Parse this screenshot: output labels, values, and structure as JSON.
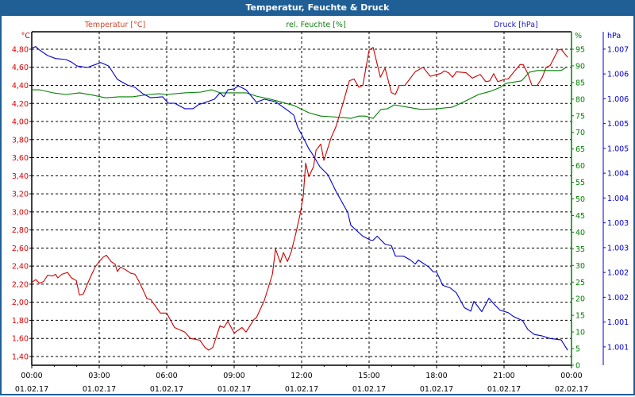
{
  "title": "Temperatur, Feuchte & Druck",
  "chart_data": {
    "type": "line",
    "title": "Temperatur, Feuchte & Druck",
    "legend": [
      {
        "name": "Temperatur [°C]",
        "color": "#cc0000"
      },
      {
        "name": "rel. Feuchte [%]",
        "color": "#008000"
      },
      {
        "name": "Druck [hPa]",
        "color": "#0000cc"
      }
    ],
    "x_axis": {
      "unit": "hours since 01.02.17 00:00",
      "range": [
        0,
        24
      ],
      "ticks": [
        {
          "h": 0,
          "time": "00:00",
          "date": "01.02.17"
        },
        {
          "h": 3,
          "time": "03:00",
          "date": "01.02.17"
        },
        {
          "h": 6,
          "time": "06:00",
          "date": "01.02.17"
        },
        {
          "h": 9,
          "time": "09:00",
          "date": "01.02.17"
        },
        {
          "h": 12,
          "time": "12:00",
          "date": "01.02.17"
        },
        {
          "h": 15,
          "time": "15:00",
          "date": "01.02.17"
        },
        {
          "h": 18,
          "time": "18:00",
          "date": "01.02.17"
        },
        {
          "h": 21,
          "time": "21:00",
          "date": "01.02.17"
        },
        {
          "h": 24,
          "time": "00:00",
          "date": "02.02.17"
        }
      ],
      "minor_step_hours": 1
    },
    "y_axes": {
      "temperature": {
        "unit_label": "°C",
        "range": [
          1.303,
          4.993
        ],
        "ticks": [
          1.4,
          1.6,
          1.8,
          2.0,
          2.2,
          2.4,
          2.6,
          2.8,
          3.0,
          3.2,
          3.4,
          3.6,
          3.8,
          4.0,
          4.2,
          4.4,
          4.6,
          4.8
        ],
        "tick_labels": [
          "1,40",
          "1,60",
          "1,80",
          "2,00",
          "2,20",
          "2,40",
          "2,60",
          "2,80",
          "3,00",
          "3,20",
          "3,40",
          "3,60",
          "3,80",
          "4,00",
          "4,20",
          "4,40",
          "4,60",
          "4,80"
        ]
      },
      "humidity": {
        "unit_label": "%",
        "range": [
          0,
          100.25
        ],
        "ticks": [
          0,
          5,
          10,
          15,
          20,
          25,
          30,
          35,
          40,
          45,
          50,
          55,
          60,
          65,
          70,
          75,
          80,
          85,
          90,
          95
        ],
        "tick_labels": [
          "0",
          "5",
          "10",
          "15",
          "20",
          "25",
          "30",
          "35",
          "40",
          "45",
          "50",
          "55",
          "60",
          "65",
          "70",
          "75",
          "80",
          "85",
          "90",
          "95"
        ]
      },
      "pressure": {
        "unit_label": "hPa",
        "range": [
          1.00063,
          1.00735
        ],
        "ticks": [
          1.007,
          1.0065,
          1.006,
          1.0055,
          1.005,
          1.0045,
          1.004,
          1.0035,
          1.003,
          1.0025,
          1.002,
          1.0015,
          1.001
        ],
        "tick_labels": [
          "1.007",
          "1.006",
          "1.006",
          "1.005",
          "1.005",
          "1.004",
          "1.004",
          "1.003",
          "1.003",
          "1.002",
          "1.002",
          "1.001",
          "1.001"
        ]
      }
    },
    "grid": true,
    "series": [
      {
        "name": "Temperatur",
        "axis": "temperature",
        "color": "#cc0000",
        "points": [
          [
            0,
            2.22
          ],
          [
            0.18,
            2.25
          ],
          [
            0.35,
            2.21
          ],
          [
            0.53,
            2.23
          ],
          [
            0.71,
            2.3
          ],
          [
            0.92,
            2.29
          ],
          [
            1.06,
            2.31
          ],
          [
            1.16,
            2.27
          ],
          [
            1.34,
            2.31
          ],
          [
            1.59,
            2.33
          ],
          [
            1.76,
            2.27
          ],
          [
            1.98,
            2.24
          ],
          [
            2.12,
            2.08
          ],
          [
            2.29,
            2.09
          ],
          [
            2.47,
            2.2
          ],
          [
            2.65,
            2.3
          ],
          [
            2.82,
            2.39
          ],
          [
            3.0,
            2.45
          ],
          [
            3.18,
            2.5
          ],
          [
            3.32,
            2.52
          ],
          [
            3.53,
            2.45
          ],
          [
            3.71,
            2.42
          ],
          [
            3.81,
            2.34
          ],
          [
            3.95,
            2.39
          ],
          [
            4.17,
            2.36
          ],
          [
            4.41,
            2.32
          ],
          [
            4.59,
            2.31
          ],
          [
            4.77,
            2.23
          ],
          [
            4.94,
            2.14
          ],
          [
            5.12,
            2.04
          ],
          [
            5.29,
            2.03
          ],
          [
            5.72,
            1.88
          ],
          [
            6.0,
            1.88
          ],
          [
            6.35,
            1.72
          ],
          [
            6.81,
            1.67
          ],
          [
            7.06,
            1.6
          ],
          [
            7.48,
            1.58
          ],
          [
            7.7,
            1.5
          ],
          [
            7.87,
            1.47
          ],
          [
            8.05,
            1.5
          ],
          [
            8.37,
            1.74
          ],
          [
            8.54,
            1.72
          ],
          [
            8.72,
            1.79
          ],
          [
            9.0,
            1.66
          ],
          [
            9.35,
            1.72
          ],
          [
            9.53,
            1.67
          ],
          [
            9.88,
            1.81
          ],
          [
            9.99,
            1.83
          ],
          [
            10.34,
            2.02
          ],
          [
            10.7,
            2.31
          ],
          [
            10.84,
            2.59
          ],
          [
            11.05,
            2.44
          ],
          [
            11.19,
            2.55
          ],
          [
            11.37,
            2.45
          ],
          [
            11.54,
            2.56
          ],
          [
            11.75,
            2.77
          ],
          [
            11.93,
            2.97
          ],
          [
            12.07,
            3.17
          ],
          [
            12.18,
            3.54
          ],
          [
            12.32,
            3.39
          ],
          [
            12.53,
            3.5
          ],
          [
            12.64,
            3.68
          ],
          [
            12.85,
            3.75
          ],
          [
            12.99,
            3.57
          ],
          [
            13.31,
            3.82
          ],
          [
            13.52,
            3.94
          ],
          [
            13.84,
            4.2
          ],
          [
            14.12,
            4.45
          ],
          [
            14.33,
            4.47
          ],
          [
            14.54,
            4.38
          ],
          [
            14.72,
            4.4
          ],
          [
            15.0,
            4.79
          ],
          [
            15.18,
            4.82
          ],
          [
            15.5,
            4.49
          ],
          [
            15.71,
            4.59
          ],
          [
            15.99,
            4.32
          ],
          [
            16.17,
            4.3
          ],
          [
            16.34,
            4.4
          ],
          [
            16.59,
            4.4
          ],
          [
            17.05,
            4.55
          ],
          [
            17.4,
            4.6
          ],
          [
            17.72,
            4.5
          ],
          [
            18.0,
            4.52
          ],
          [
            18.18,
            4.53
          ],
          [
            18.35,
            4.56
          ],
          [
            18.53,
            4.54
          ],
          [
            18.71,
            4.49
          ],
          [
            18.88,
            4.55
          ],
          [
            19.31,
            4.54
          ],
          [
            19.59,
            4.48
          ],
          [
            19.94,
            4.52
          ],
          [
            20.19,
            4.44
          ],
          [
            20.37,
            4.45
          ],
          [
            20.54,
            4.53
          ],
          [
            20.72,
            4.44
          ],
          [
            21.07,
            4.47
          ],
          [
            21.18,
            4.47
          ],
          [
            21.71,
            4.63
          ],
          [
            21.85,
            4.63
          ],
          [
            22.06,
            4.53
          ],
          [
            22.24,
            4.4
          ],
          [
            22.48,
            4.4
          ],
          [
            22.7,
            4.49
          ],
          [
            22.87,
            4.6
          ],
          [
            23.05,
            4.62
          ],
          [
            23.4,
            4.79
          ],
          [
            23.54,
            4.8
          ],
          [
            23.83,
            4.71
          ]
        ]
      },
      {
        "name": "rel. Feuchte",
        "axis": "humidity",
        "color": "#008000",
        "points": [
          [
            0,
            82.8
          ],
          [
            0.35,
            82.8
          ],
          [
            0.95,
            81.9
          ],
          [
            1.52,
            81.4
          ],
          [
            2.12,
            81.9
          ],
          [
            2.72,
            81.2
          ],
          [
            3.28,
            80.4
          ],
          [
            3.88,
            80.7
          ],
          [
            4.48,
            80.7
          ],
          [
            5.19,
            81.4
          ],
          [
            5.65,
            81.6
          ],
          [
            6.0,
            81.4
          ],
          [
            6.81,
            81.9
          ],
          [
            7.52,
            82.1
          ],
          [
            8.01,
            82.8
          ],
          [
            8.37,
            81.9
          ],
          [
            8.93,
            81.9
          ],
          [
            9.53,
            81.9
          ],
          [
            9.99,
            80.9
          ],
          [
            10.59,
            80.0
          ],
          [
            11.05,
            79.2
          ],
          [
            11.65,
            78.1
          ],
          [
            12.32,
            75.9
          ],
          [
            12.85,
            74.9
          ],
          [
            13.31,
            74.7
          ],
          [
            13.77,
            74.5
          ],
          [
            14.19,
            74.2
          ],
          [
            14.54,
            74.9
          ],
          [
            14.82,
            74.9
          ],
          [
            15.18,
            74.2
          ],
          [
            15.53,
            76.9
          ],
          [
            15.81,
            77.1
          ],
          [
            16.13,
            78.3
          ],
          [
            16.7,
            77.6
          ],
          [
            17.3,
            76.9
          ],
          [
            18.0,
            77.1
          ],
          [
            18.71,
            77.6
          ],
          [
            19.31,
            79.5
          ],
          [
            19.87,
            81.4
          ],
          [
            20.37,
            82.3
          ],
          [
            20.82,
            83.5
          ],
          [
            21.07,
            84.7
          ],
          [
            21.78,
            85.5
          ],
          [
            22.13,
            88.1
          ],
          [
            22.48,
            88.6
          ],
          [
            23.54,
            88.6
          ],
          [
            23.75,
            89.5
          ]
        ]
      },
      {
        "name": "Druck",
        "axis": "pressure",
        "color": "#0000cc",
        "points": [
          [
            0,
            1.00702
          ],
          [
            0.18,
            1.00705
          ],
          [
            0.35,
            1.00698
          ],
          [
            0.71,
            1.00687
          ],
          [
            1.06,
            1.00681
          ],
          [
            1.52,
            1.00679
          ],
          [
            1.76,
            1.00674
          ],
          [
            2.01,
            1.00666
          ],
          [
            2.47,
            1.00663
          ],
          [
            3.07,
            1.00673
          ],
          [
            3.42,
            1.00666
          ],
          [
            3.81,
            1.00639
          ],
          [
            4.24,
            1.00628
          ],
          [
            4.59,
            1.00623
          ],
          [
            4.94,
            1.0061
          ],
          [
            5.29,
            1.00602
          ],
          [
            5.82,
            1.00604
          ],
          [
            6.07,
            1.00591
          ],
          [
            6.35,
            1.00591
          ],
          [
            6.81,
            1.0058
          ],
          [
            7.17,
            1.0058
          ],
          [
            7.41,
            1.00588
          ],
          [
            8.12,
            1.00599
          ],
          [
            8.37,
            1.00612
          ],
          [
            8.54,
            1.00604
          ],
          [
            8.72,
            1.00618
          ],
          [
            9.0,
            1.0062
          ],
          [
            9.18,
            1.00626
          ],
          [
            9.53,
            1.00618
          ],
          [
            9.99,
            1.00593
          ],
          [
            10.34,
            1.00599
          ],
          [
            10.84,
            1.00594
          ],
          [
            11.4,
            1.00576
          ],
          [
            11.65,
            1.00567
          ],
          [
            11.82,
            1.00543
          ],
          [
            12.07,
            1.00522
          ],
          [
            12.32,
            1.00499
          ],
          [
            12.46,
            1.0049
          ],
          [
            12.81,
            1.00463
          ],
          [
            13.17,
            1.00447
          ],
          [
            13.52,
            1.00414
          ],
          [
            14.05,
            1.00371
          ],
          [
            14.19,
            1.00345
          ],
          [
            14.72,
            1.00323
          ],
          [
            15.07,
            1.00315
          ],
          [
            15.18,
            1.00315
          ],
          [
            15.36,
            1.00323
          ],
          [
            15.71,
            1.00307
          ],
          [
            15.99,
            1.00304
          ],
          [
            16.17,
            1.00283
          ],
          [
            16.52,
            1.00283
          ],
          [
            16.84,
            1.00275
          ],
          [
            17.05,
            1.00267
          ],
          [
            17.19,
            1.00275
          ],
          [
            17.65,
            1.00261
          ],
          [
            17.86,
            1.00251
          ],
          [
            18.0,
            1.00251
          ],
          [
            18.28,
            1.00224
          ],
          [
            18.6,
            1.00219
          ],
          [
            18.88,
            1.00209
          ],
          [
            19.24,
            1.00179
          ],
          [
            19.52,
            1.00172
          ],
          [
            19.66,
            1.00192
          ],
          [
            20.01,
            1.00171
          ],
          [
            20.33,
            1.00198
          ],
          [
            20.54,
            1.00187
          ],
          [
            20.82,
            1.00174
          ],
          [
            21.18,
            1.00169
          ],
          [
            21.43,
            1.00161
          ],
          [
            21.82,
            1.00153
          ],
          [
            22.06,
            1.00135
          ],
          [
            22.34,
            1.00125
          ],
          [
            22.7,
            1.00122
          ],
          [
            23.05,
            1.00117
          ],
          [
            23.54,
            1.00114
          ],
          [
            23.83,
            1.00093
          ]
        ]
      }
    ]
  }
}
